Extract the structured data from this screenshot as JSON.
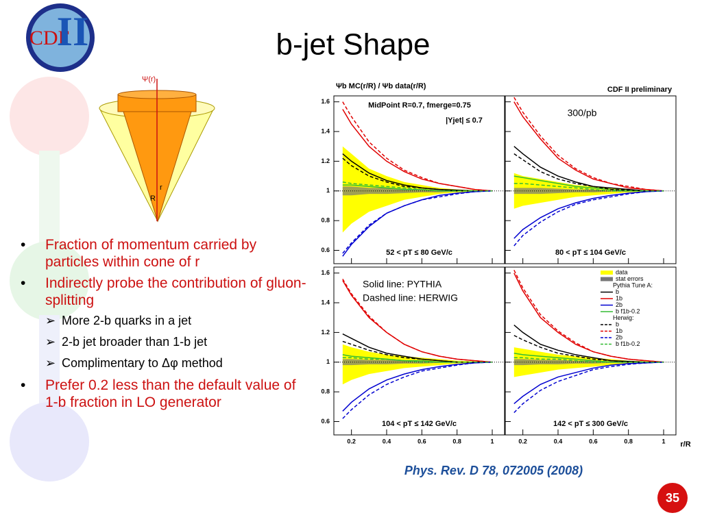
{
  "slide": {
    "title": "b-jet Shape",
    "logo": {
      "left": "CDF",
      "right": "II"
    },
    "cone_labels": {
      "psi": "Ψ(r)",
      "r": "r",
      "R": "R"
    },
    "bullets": [
      {
        "text": "Fraction of momentum carried by particles within cone of r"
      },
      {
        "text": "Indirectly probe the contribution of gluon-splitting",
        "sub": [
          "More 2-b quarks in a jet",
          "2-b jet broader than 1-b jet",
          "Complimentary to Δφ method"
        ]
      },
      {
        "text": "Prefer 0.2 less than the default value of 1-b fraction in LO generator"
      }
    ],
    "citation": "Phys. Rev. D 78, 072005 (2008)",
    "page": "35"
  },
  "figure": {
    "ylabel": "Ψb MC(r/R) / Ψb data(r/R)",
    "corner": "CDF II preliminary",
    "xlabel": "r/R",
    "legend_headers": [
      "Pythia Tune A:",
      "Herwig:"
    ]
  },
  "chart_data": [
    {
      "type": "line",
      "subtitle": "52 < pT ≤ 80 GeV/c",
      "annotations": [
        "MidPoint R=0.7, fmerge=0.75",
        "|Yjet| ≤ 0.7"
      ],
      "x": [
        0.15,
        0.2,
        0.3,
        0.4,
        0.5,
        0.6,
        0.7,
        0.8,
        0.9,
        1.0
      ],
      "xlim": [
        0.1,
        1.07
      ],
      "ylim": [
        0.51,
        1.64
      ],
      "xticks": [
        0.2,
        0.4,
        0.6,
        0.8,
        1
      ],
      "yticks": [
        0.6,
        0.8,
        1,
        1.2,
        1.4,
        1.6
      ],
      "reference_line": 1,
      "band": {
        "name": "data",
        "color": "#ffff00",
        "upper": [
          1.3,
          1.25,
          1.15,
          1.1,
          1.06,
          1.04,
          1.02,
          1.01,
          1.005,
          1.0
        ],
        "lower": [
          0.72,
          0.78,
          0.86,
          0.9,
          0.94,
          0.96,
          0.98,
          0.99,
          0.995,
          1.0
        ]
      },
      "stat_band": {
        "name": "stat errors",
        "color": "#777777",
        "upper": [
          1.03,
          1.03,
          1.02,
          1.02,
          1.015,
          1.01,
          1.01,
          1.005,
          1.0,
          1.0
        ],
        "lower": [
          0.97,
          0.97,
          0.98,
          0.98,
          0.985,
          0.99,
          0.99,
          0.995,
          1.0,
          1.0
        ]
      },
      "series": [
        {
          "name": "b",
          "color": "#000000",
          "dash": false,
          "values": [
            1.25,
            1.2,
            1.12,
            1.07,
            1.04,
            1.02,
            1.01,
            1.005,
            1.0,
            1.0
          ]
        },
        {
          "name": "1b",
          "color": "#e00000",
          "dash": false,
          "values": [
            1.55,
            1.45,
            1.3,
            1.2,
            1.13,
            1.08,
            1.05,
            1.03,
            1.01,
            1.0
          ]
        },
        {
          "name": "2b",
          "color": "#0000d0",
          "dash": false,
          "values": [
            0.56,
            0.64,
            0.76,
            0.85,
            0.9,
            0.94,
            0.97,
            0.985,
            0.995,
            1.0
          ]
        },
        {
          "name": "b f1b-0.2",
          "color": "#33bb33",
          "dash": false,
          "values": [
            1.04,
            1.04,
            1.03,
            1.02,
            1.01,
            1.01,
            1.0,
            1.0,
            1.0,
            1.0
          ]
        },
        {
          "name": "b",
          "color": "#000000",
          "dash": true,
          "values": [
            1.22,
            1.17,
            1.1,
            1.06,
            1.03,
            1.02,
            1.01,
            1.0,
            1.0,
            1.0
          ]
        },
        {
          "name": "1b",
          "color": "#e00000",
          "dash": true,
          "values": [
            1.6,
            1.5,
            1.33,
            1.22,
            1.14,
            1.09,
            1.05,
            1.03,
            1.01,
            1.0
          ]
        },
        {
          "name": "2b",
          "color": "#0000d0",
          "dash": true,
          "values": [
            0.58,
            0.65,
            0.77,
            0.85,
            0.9,
            0.94,
            0.96,
            0.98,
            0.995,
            1.0
          ]
        },
        {
          "name": "b f1b-0.2",
          "color": "#33bb33",
          "dash": true,
          "values": [
            1.06,
            1.05,
            1.04,
            1.03,
            1.02,
            1.01,
            1.0,
            1.0,
            1.0,
            1.0
          ]
        }
      ]
    },
    {
      "type": "line",
      "subtitle": "80 < pT ≤ 104 GeV/c",
      "annotations": [
        "300/pb"
      ],
      "x": [
        0.15,
        0.2,
        0.3,
        0.4,
        0.5,
        0.6,
        0.7,
        0.8,
        0.9,
        1.0
      ],
      "xlim": [
        0.1,
        1.07
      ],
      "ylim": [
        0.51,
        1.64
      ],
      "xticks": [
        0.2,
        0.4,
        0.6,
        0.8,
        1
      ],
      "yticks": [
        0.6,
        0.8,
        1,
        1.2,
        1.4,
        1.6
      ],
      "reference_line": 1,
      "band": {
        "name": "data",
        "color": "#ffff00",
        "upper": [
          1.12,
          1.1,
          1.08,
          1.06,
          1.04,
          1.03,
          1.02,
          1.01,
          1.005,
          1.0
        ],
        "lower": [
          0.88,
          0.9,
          0.92,
          0.94,
          0.96,
          0.97,
          0.98,
          0.99,
          0.995,
          1.0
        ]
      },
      "stat_band": {
        "name": "stat errors",
        "color": "#777777",
        "upper": [
          1.02,
          1.02,
          1.02,
          1.015,
          1.01,
          1.01,
          1.005,
          1.005,
          1.0,
          1.0
        ],
        "lower": [
          0.98,
          0.98,
          0.98,
          0.985,
          0.99,
          0.99,
          0.995,
          0.995,
          1.0,
          1.0
        ]
      },
      "series": [
        {
          "name": "b",
          "color": "#000000",
          "dash": false,
          "values": [
            1.3,
            1.25,
            1.16,
            1.1,
            1.06,
            1.03,
            1.02,
            1.01,
            1.0,
            1.0
          ]
        },
        {
          "name": "1b",
          "color": "#e00000",
          "dash": false,
          "values": [
            1.6,
            1.5,
            1.35,
            1.22,
            1.14,
            1.08,
            1.05,
            1.02,
            1.01,
            1.0
          ]
        },
        {
          "name": "2b",
          "color": "#0000d0",
          "dash": false,
          "values": [
            0.68,
            0.74,
            0.82,
            0.88,
            0.92,
            0.95,
            0.97,
            0.985,
            0.995,
            1.0
          ]
        },
        {
          "name": "b f1b-0.2",
          "color": "#33bb33",
          "dash": false,
          "values": [
            1.1,
            1.09,
            1.07,
            1.05,
            1.03,
            1.02,
            1.01,
            1.0,
            1.0,
            1.0
          ]
        },
        {
          "name": "b",
          "color": "#000000",
          "dash": true,
          "values": [
            1.25,
            1.21,
            1.13,
            1.08,
            1.05,
            1.03,
            1.01,
            1.005,
            1.0,
            1.0
          ]
        },
        {
          "name": "1b",
          "color": "#e00000",
          "dash": true,
          "values": [
            1.63,
            1.53,
            1.37,
            1.24,
            1.15,
            1.09,
            1.05,
            1.03,
            1.01,
            1.0
          ]
        },
        {
          "name": "2b",
          "color": "#0000d0",
          "dash": true,
          "values": [
            0.63,
            0.7,
            0.79,
            0.86,
            0.91,
            0.94,
            0.96,
            0.98,
            0.995,
            1.0
          ]
        },
        {
          "name": "b f1b-0.2",
          "color": "#33bb33",
          "dash": true,
          "values": [
            1.05,
            1.05,
            1.04,
            1.03,
            1.02,
            1.01,
            1.0,
            1.0,
            1.0,
            1.0
          ]
        }
      ]
    },
    {
      "type": "line",
      "subtitle": "104 < pT ≤ 142 GeV/c",
      "annotations": [
        "Solid line: PYTHIA",
        "Dashed line: HERWIG"
      ],
      "x": [
        0.15,
        0.2,
        0.3,
        0.4,
        0.5,
        0.6,
        0.7,
        0.8,
        0.9,
        1.0
      ],
      "xlim": [
        0.1,
        1.07
      ],
      "ylim": [
        0.51,
        1.64
      ],
      "xticks": [
        0.2,
        0.4,
        0.6,
        0.8,
        1
      ],
      "yticks": [
        0.6,
        0.8,
        1,
        1.2,
        1.4,
        1.6
      ],
      "reference_line": 1,
      "band": {
        "name": "data",
        "color": "#ffff00",
        "upper": [
          1.12,
          1.1,
          1.07,
          1.05,
          1.04,
          1.03,
          1.02,
          1.01,
          1.005,
          1.0
        ],
        "lower": [
          0.85,
          0.88,
          0.92,
          0.94,
          0.96,
          0.97,
          0.98,
          0.99,
          0.995,
          1.0
        ]
      },
      "stat_band": {
        "name": "stat errors",
        "color": "#777777",
        "upper": [
          1.02,
          1.02,
          1.015,
          1.015,
          1.01,
          1.01,
          1.005,
          1.005,
          1.0,
          1.0
        ],
        "lower": [
          0.98,
          0.98,
          0.985,
          0.985,
          0.99,
          0.99,
          0.995,
          0.995,
          1.0,
          1.0
        ]
      },
      "series": [
        {
          "name": "b",
          "color": "#000000",
          "dash": false,
          "values": [
            1.19,
            1.16,
            1.1,
            1.06,
            1.04,
            1.02,
            1.01,
            1.0,
            1.0,
            1.0
          ]
        },
        {
          "name": "1b",
          "color": "#e00000",
          "dash": false,
          "values": [
            1.55,
            1.45,
            1.3,
            1.2,
            1.12,
            1.07,
            1.04,
            1.02,
            1.01,
            1.0
          ]
        },
        {
          "name": "2b",
          "color": "#0000d0",
          "dash": false,
          "values": [
            0.67,
            0.73,
            0.82,
            0.88,
            0.92,
            0.95,
            0.97,
            0.985,
            0.995,
            1.0
          ]
        },
        {
          "name": "b f1b-0.2",
          "color": "#33bb33",
          "dash": false,
          "values": [
            1.05,
            1.04,
            1.03,
            1.02,
            1.01,
            1.01,
            1.0,
            1.0,
            1.0,
            1.0
          ]
        },
        {
          "name": "b",
          "color": "#000000",
          "dash": true,
          "values": [
            1.14,
            1.12,
            1.08,
            1.05,
            1.03,
            1.02,
            1.01,
            1.0,
            1.0,
            1.0
          ]
        },
        {
          "name": "1b",
          "color": "#e00000",
          "dash": true,
          "values": [
            1.56,
            1.46,
            1.31,
            1.2,
            1.12,
            1.07,
            1.04,
            1.02,
            1.01,
            1.0
          ]
        },
        {
          "name": "2b",
          "color": "#0000d0",
          "dash": true,
          "values": [
            0.62,
            0.68,
            0.78,
            0.85,
            0.9,
            0.94,
            0.96,
            0.98,
            0.995,
            1.0
          ]
        },
        {
          "name": "b f1b-0.2",
          "color": "#33bb33",
          "dash": true,
          "values": [
            1.03,
            1.03,
            1.02,
            1.02,
            1.01,
            1.0,
            1.0,
            1.0,
            1.0,
            1.0
          ]
        }
      ]
    },
    {
      "type": "line",
      "subtitle": "142 < pT ≤ 300 GeV/c",
      "annotations": [],
      "legend": "top-right",
      "x": [
        0.15,
        0.2,
        0.3,
        0.4,
        0.5,
        0.6,
        0.7,
        0.8,
        0.9,
        1.0
      ],
      "xlim": [
        0.1,
        1.07
      ],
      "ylim": [
        0.51,
        1.64
      ],
      "xticks": [
        0.2,
        0.4,
        0.6,
        0.8,
        1
      ],
      "yticks": [
        0.6,
        0.8,
        1,
        1.2,
        1.4,
        1.6
      ],
      "reference_line": 1,
      "band": {
        "name": "data",
        "color": "#ffff00",
        "upper": [
          1.1,
          1.09,
          1.07,
          1.05,
          1.04,
          1.03,
          1.02,
          1.01,
          1.005,
          1.0
        ],
        "lower": [
          0.9,
          0.91,
          0.93,
          0.95,
          0.96,
          0.97,
          0.98,
          0.99,
          0.995,
          1.0
        ]
      },
      "stat_band": {
        "name": "stat errors",
        "color": "#777777",
        "upper": [
          1.02,
          1.02,
          1.015,
          1.015,
          1.01,
          1.01,
          1.005,
          1.005,
          1.0,
          1.0
        ],
        "lower": [
          0.98,
          0.98,
          0.985,
          0.985,
          0.99,
          0.99,
          0.995,
          0.995,
          1.0,
          1.0
        ]
      },
      "series": [
        {
          "name": "b",
          "color": "#000000",
          "dash": false,
          "values": [
            1.25,
            1.2,
            1.12,
            1.08,
            1.05,
            1.03,
            1.01,
            1.005,
            1.0,
            1.0
          ]
        },
        {
          "name": "1b",
          "color": "#e00000",
          "dash": false,
          "values": [
            1.6,
            1.48,
            1.3,
            1.2,
            1.12,
            1.07,
            1.04,
            1.02,
            1.01,
            1.0
          ]
        },
        {
          "name": "2b",
          "color": "#0000d0",
          "dash": false,
          "values": [
            0.72,
            0.77,
            0.85,
            0.9,
            0.93,
            0.96,
            0.98,
            0.99,
            0.995,
            1.0
          ]
        },
        {
          "name": "b f1b-0.2",
          "color": "#33bb33",
          "dash": false,
          "values": [
            1.06,
            1.05,
            1.04,
            1.03,
            1.02,
            1.01,
            1.0,
            1.0,
            1.0,
            1.0
          ]
        },
        {
          "name": "b",
          "color": "#000000",
          "dash": true,
          "values": [
            1.18,
            1.15,
            1.1,
            1.06,
            1.04,
            1.02,
            1.01,
            1.0,
            1.0,
            1.0
          ]
        },
        {
          "name": "1b",
          "color": "#e00000",
          "dash": true,
          "values": [
            1.62,
            1.5,
            1.32,
            1.21,
            1.13,
            1.07,
            1.04,
            1.02,
            1.01,
            1.0
          ]
        },
        {
          "name": "2b",
          "color": "#0000d0",
          "dash": true,
          "values": [
            0.66,
            0.72,
            0.81,
            0.87,
            0.91,
            0.95,
            0.97,
            0.985,
            0.995,
            1.0
          ]
        },
        {
          "name": "b f1b-0.2",
          "color": "#33bb33",
          "dash": true,
          "values": [
            1.03,
            1.03,
            1.02,
            1.02,
            1.01,
            1.0,
            1.0,
            1.0,
            1.0,
            1.0
          ]
        }
      ]
    }
  ]
}
